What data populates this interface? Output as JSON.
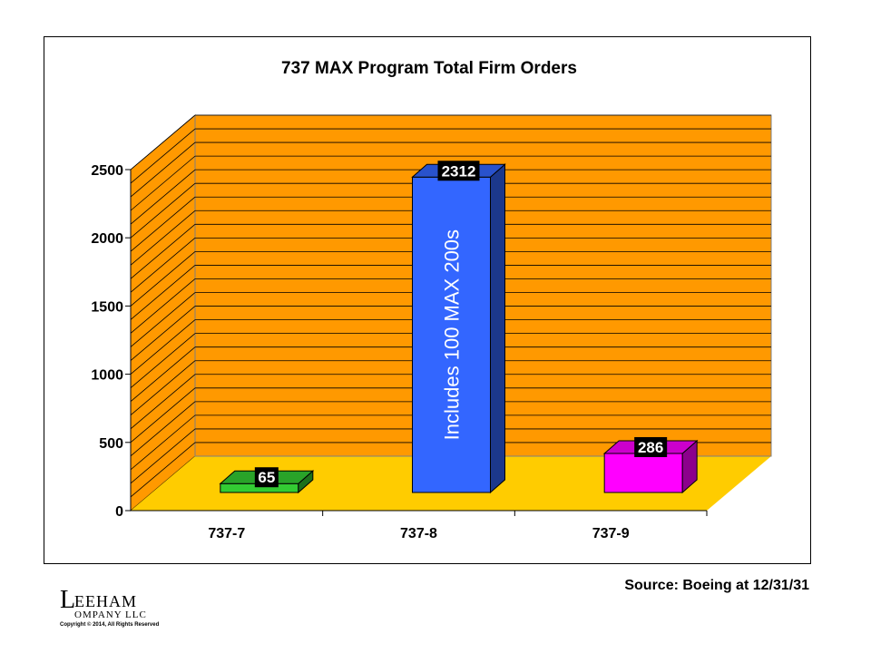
{
  "chart_data": {
    "type": "bar",
    "title": "737 MAX Program Total Firm Orders",
    "categories": [
      "737-7",
      "737-8",
      "737-9"
    ],
    "values": [
      65,
      2312,
      286
    ],
    "value_labels": [
      "65",
      "2312",
      "286"
    ],
    "ylim": [
      0,
      2500
    ],
    "yticks": [
      "0",
      "500",
      "1000",
      "1500",
      "2000",
      "2500"
    ],
    "xlabel": "",
    "ylabel": "",
    "grid": true,
    "style": "3d-bar",
    "annotation": "Includes 100 MAX 200s",
    "colors": {
      "wall": "#FF9900",
      "floor": "#FFCC00",
      "gridline": "#000000",
      "bars": [
        "#33CC33",
        "#3366FF",
        "#FF00FF"
      ]
    }
  },
  "source_note": "Source: Boeing at 12/31/31",
  "logo": {
    "line1_initial": "L",
    "line1_rest": "EEHAM",
    "line2_rest": "OMPANY LLC",
    "copyright": "Copyright © 2014, All Rights Reserved"
  }
}
